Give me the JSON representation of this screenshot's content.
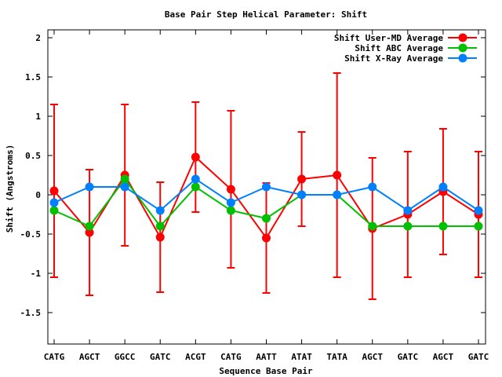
{
  "chart_data": {
    "type": "line",
    "title": "Base Pair Step Helical Parameter: Shift",
    "xlabel": "Sequence Base Pair",
    "ylabel": "Shift (Angstroms)",
    "categories": [
      "CATG",
      "AGCT",
      "GGCC",
      "GATC",
      "ACGT",
      "CATG",
      "AATT",
      "ATAT",
      "TATA",
      "AGCT",
      "GATC",
      "AGCT",
      "GATC"
    ],
    "ylim": [
      -1.9,
      2.1
    ],
    "yticks": [
      -1.5,
      -1,
      -0.5,
      0,
      0.5,
      1,
      1.5,
      2
    ],
    "ytick_labels": [
      "-1.5",
      "-1",
      "-0.5",
      "0",
      "0.5",
      "1",
      "1.5",
      "2"
    ],
    "grid": false,
    "legend_position": "top-right",
    "series": [
      {
        "name": "Shift User-MD Average",
        "color": "#ff0000",
        "values": [
          0.05,
          -0.48,
          0.25,
          -0.54,
          0.48,
          0.07,
          -0.55,
          0.2,
          0.25,
          -0.43,
          -0.25,
          0.04,
          -0.25
        ],
        "error": [
          1.1,
          0.8,
          0.9,
          0.7,
          0.7,
          1.0,
          0.7,
          0.6,
          1.3,
          0.9,
          0.8,
          0.8,
          0.8
        ]
      },
      {
        "name": "Shift ABC Average",
        "color": "#00c000",
        "values": [
          -0.2,
          -0.4,
          0.2,
          -0.4,
          0.1,
          -0.2,
          -0.3,
          0.0,
          0.0,
          -0.4,
          -0.4,
          -0.4,
          -0.4
        ]
      },
      {
        "name": "Shift X-Ray Average",
        "color": "#0080ff",
        "values": [
          -0.1,
          0.1,
          0.1,
          -0.2,
          0.2,
          -0.1,
          0.1,
          0.0,
          0.0,
          0.1,
          -0.2,
          0.1,
          -0.2
        ]
      }
    ]
  }
}
